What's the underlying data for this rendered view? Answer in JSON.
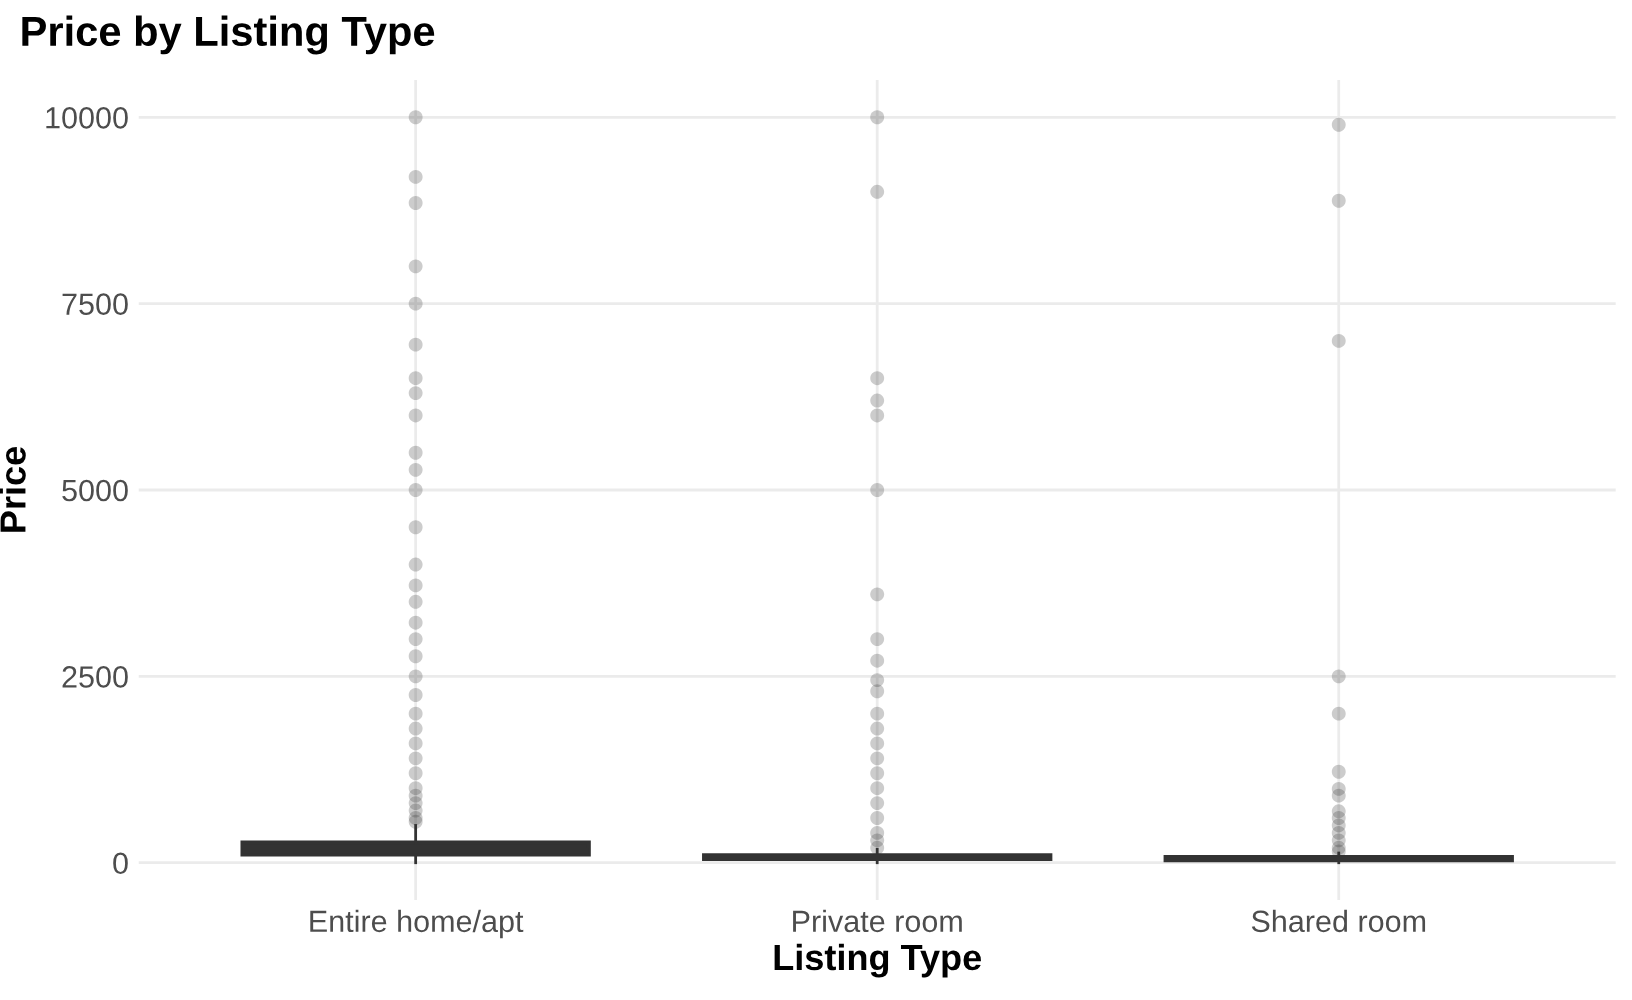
{
  "chart_data": {
    "type": "box",
    "title": "Price by Listing Type",
    "xlabel": "Listing Type",
    "ylabel": "Price",
    "categories": [
      "Entire home/apt",
      "Private room",
      "Shared room"
    ],
    "boxes": [
      {
        "low": 0,
        "q1": 110,
        "median": 160,
        "q3": 270,
        "high": 500,
        "outliers": [
          10000,
          9200,
          8850,
          8000,
          7500,
          6950,
          6500,
          6300,
          6000,
          5500,
          5270,
          5000,
          4500,
          4000,
          3720,
          3500,
          3220,
          3000,
          2770,
          2500,
          2250,
          2000,
          1800,
          1600,
          1400,
          1200,
          1000,
          900,
          800,
          700,
          600,
          550
        ]
      },
      {
        "low": 0,
        "q1": 50,
        "median": 75,
        "q3": 100,
        "high": 180,
        "outliers": [
          10000,
          9000,
          6500,
          6200,
          6000,
          5000,
          3600,
          3000,
          2710,
          2450,
          2300,
          2000,
          1800,
          1600,
          1400,
          1200,
          1000,
          800,
          600,
          400,
          300,
          200
        ]
      },
      {
        "low": 0,
        "q1": 35,
        "median": 50,
        "q3": 75,
        "high": 130,
        "outliers": [
          9900,
          8880,
          7000,
          2500,
          2000,
          1220,
          990,
          900,
          690,
          600,
          500,
          400,
          300,
          200,
          150
        ]
      }
    ],
    "ylim": [
      -500,
      10500
    ],
    "yticks": [
      0,
      2500,
      5000,
      7500,
      10000
    ],
    "grid": true
  }
}
